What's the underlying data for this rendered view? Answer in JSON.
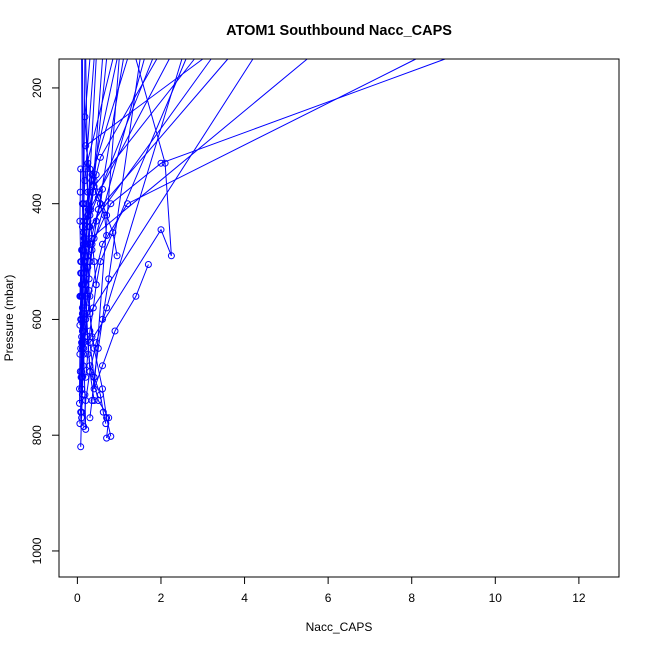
{
  "chart_data": {
    "type": "line",
    "title": "ATOM1 Southbound Nacc_CAPS",
    "xlabel": "Nacc_CAPS",
    "ylabel": "Pressure (mbar)",
    "xlim": [
      -0.44,
      12.96
    ],
    "ylim": [
      1045,
      150
    ],
    "y_reversed": true,
    "x_ticks": [
      0,
      2,
      4,
      6,
      8,
      10,
      12
    ],
    "y_ticks": [
      200,
      400,
      600,
      800,
      1000
    ],
    "x_tick_labels": [
      "0",
      "2",
      "4",
      "6",
      "8",
      "10",
      "12"
    ],
    "y_tick_labels": [
      "200",
      "400",
      "600",
      "800",
      "1000"
    ],
    "series_color": "#0000ff",
    "marker": "open-circle",
    "grid": false,
    "legend": "none",
    "series": [
      {
        "x": [
          0.08,
          0.1,
          0.12,
          0.15,
          0.2,
          0.35,
          0.8,
          2.0,
          8.8
        ],
        "y": [
          820,
          760,
          700,
          640,
          560,
          470,
          400,
          330,
          150
        ]
      },
      {
        "x": [
          0.06,
          0.1,
          0.15,
          0.3,
          0.6,
          1.2,
          8.1
        ],
        "y": [
          780,
          720,
          650,
          560,
          470,
          400,
          150
        ]
      },
      {
        "x": [
          0.7,
          0.75,
          0.5,
          0.3,
          0.2,
          4.2
        ],
        "y": [
          805,
          770,
          740,
          680,
          600,
          150
        ]
      },
      {
        "x": [
          0.8,
          0.7,
          0.6,
          0.4,
          0.25,
          0.15,
          5.5
        ],
        "y": [
          802,
          770,
          720,
          650,
          560,
          470,
          150
        ]
      },
      {
        "x": [
          0.68,
          0.62,
          0.55,
          0.4,
          0.3,
          2.0,
          2.25,
          2.1,
          1.4
        ],
        "y": [
          780,
          760,
          730,
          700,
          640,
          445,
          490,
          330,
          150
        ]
      },
      {
        "x": [
          1.7,
          1.4,
          0.9,
          0.6,
          0.4,
          1.0
        ],
        "y": [
          505,
          560,
          620,
          680,
          720,
          150
        ]
      },
      {
        "x": [
          0.95,
          0.85,
          0.7,
          0.5,
          0.3,
          0.2,
          3.0
        ],
        "y": [
          490,
          450,
          420,
          380,
          340,
          300,
          150
        ]
      },
      {
        "x": [
          0.05,
          0.07,
          0.1,
          0.12,
          0.18,
          0.25,
          1.8
        ],
        "y": [
          745,
          690,
          630,
          560,
          500,
          430,
          150
        ]
      },
      {
        "x": [
          0.15,
          0.2,
          0.3,
          0.45,
          0.7,
          2.5
        ],
        "y": [
          785,
          740,
          690,
          640,
          580,
          150
        ]
      },
      {
        "x": [
          0.3,
          0.35,
          0.4,
          0.5,
          0.6,
          0.75,
          1.5
        ],
        "y": [
          770,
          740,
          700,
          650,
          600,
          530,
          150
        ]
      },
      {
        "x": [
          0.1,
          0.12,
          0.15,
          0.2,
          0.3,
          0.5,
          3.6
        ],
        "y": [
          700,
          650,
          600,
          540,
          470,
          410,
          150
        ]
      },
      {
        "x": [
          0.08,
          0.1,
          0.12,
          0.18,
          0.25,
          0.4,
          2.8
        ],
        "y": [
          650,
          600,
          540,
          490,
          430,
          370,
          150
        ]
      },
      {
        "x": [
          0.06,
          0.08,
          0.1,
          0.15,
          0.22,
          0.35,
          1.2
        ],
        "y": [
          610,
          560,
          500,
          450,
          400,
          350,
          150
        ]
      },
      {
        "x": [
          0.12,
          0.15,
          0.2,
          0.28,
          0.4,
          0.7
        ],
        "y": [
          560,
          510,
          460,
          410,
          360,
          150
        ]
      },
      {
        "x": [
          0.7,
          0.65,
          0.5,
          0.35,
          0.25,
          0.18,
          0.3
        ],
        "y": [
          455,
          420,
          390,
          360,
          330,
          250,
          150
        ]
      },
      {
        "x": [
          0.05,
          0.06,
          0.08,
          0.1,
          0.12,
          0.15,
          0.18
        ],
        "y": [
          720,
          660,
          600,
          540,
          480,
          400,
          150
        ]
      },
      {
        "x": [
          0.1,
          0.12,
          0.14,
          0.16,
          0.2,
          0.25,
          0.2
        ],
        "y": [
          770,
          700,
          620,
          550,
          470,
          380,
          150
        ]
      },
      {
        "x": [
          0.4,
          0.3,
          0.25,
          0.2,
          0.15,
          0.12,
          0.1
        ],
        "y": [
          740,
          690,
          630,
          560,
          480,
          400,
          150
        ]
      },
      {
        "x": [
          0.2,
          0.18,
          0.15,
          0.12,
          0.1,
          0.25,
          0.45
        ],
        "y": [
          790,
          730,
          660,
          590,
          520,
          420,
          150
        ]
      },
      {
        "x": [
          0.08,
          0.07,
          0.06,
          0.08,
          0.1,
          0.12,
          0.6
        ],
        "y": [
          340,
          380,
          430,
          500,
          560,
          620,
          150
        ]
      },
      {
        "x": [
          0.45,
          0.4,
          0.35,
          0.3,
          0.25,
          0.2,
          0.85
        ],
        "y": [
          540,
          500,
          460,
          420,
          380,
          340,
          150
        ]
      },
      {
        "x": [
          0.6,
          0.55,
          0.45,
          0.4,
          0.3,
          1.1
        ],
        "y": [
          375,
          400,
          430,
          460,
          500,
          150
        ]
      },
      {
        "x": [
          0.35,
          0.3,
          0.28,
          0.25,
          0.2,
          0.15,
          2.2
        ],
        "y": [
          630,
          590,
          550,
          510,
          470,
          430,
          150
        ]
      },
      {
        "x": [
          0.12,
          0.14,
          0.18,
          0.22,
          0.28,
          0.35,
          1.6
        ],
        "y": [
          730,
          680,
          630,
          580,
          530,
          480,
          150
        ]
      },
      {
        "x": [
          0.1,
          0.12,
          0.16,
          0.2,
          0.24,
          0.3,
          3.2
        ],
        "y": [
          690,
          640,
          590,
          540,
          490,
          440,
          150
        ]
      },
      {
        "x": [
          0.2,
          0.25,
          0.3,
          0.38,
          0.45,
          0.55,
          2.6
        ],
        "y": [
          700,
          660,
          620,
          580,
          540,
          500,
          150
        ]
      },
      {
        "x": [
          0.06,
          0.08,
          0.1,
          0.12,
          0.15,
          0.18,
          0.4
        ],
        "y": [
          560,
          520,
          480,
          440,
          400,
          360,
          150
        ]
      },
      {
        "x": [
          0.15,
          0.18,
          0.22,
          0.26,
          0.3,
          0.36,
          0.95
        ],
        "y": [
          500,
          470,
          440,
          410,
          380,
          350,
          150
        ]
      },
      {
        "x": [
          0.25,
          0.28,
          0.32,
          0.38,
          0.45,
          0.55,
          1.9
        ],
        "y": [
          470,
          440,
          410,
          380,
          350,
          320,
          150
        ]
      },
      {
        "x": [
          0.08,
          0.09,
          0.1,
          0.12,
          0.14,
          0.16,
          0.12
        ],
        "y": [
          760,
          700,
          640,
          580,
          520,
          460,
          150
        ]
      }
    ]
  }
}
